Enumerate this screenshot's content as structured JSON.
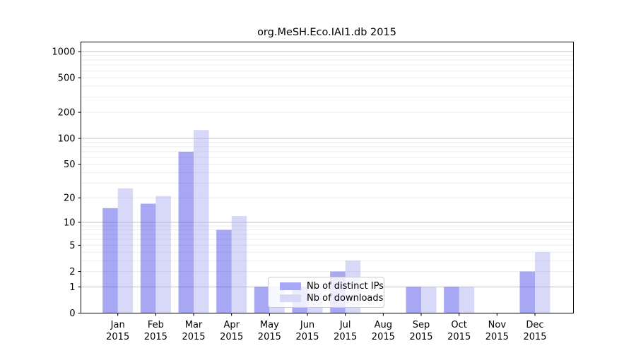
{
  "figure": {
    "background": "#ffffff"
  },
  "chart_data": {
    "type": "bar",
    "title": "org.MeSH.Eco.IAI1.db 2015",
    "categories": [
      "Jan",
      "Feb",
      "Mar",
      "Apr",
      "May",
      "Jun",
      "Jul",
      "Aug",
      "Sep",
      "Oct",
      "Nov",
      "Dec"
    ],
    "x_tick_year": "2015",
    "series": [
      {
        "name": "Nb of distinct IPs",
        "color": "#a7a7f4",
        "values": [
          15,
          17,
          70,
          8,
          1,
          1,
          2,
          0,
          1,
          1,
          0,
          2
        ]
      },
      {
        "name": "Nb of downloads",
        "color": "#d8d8f8",
        "values": [
          26,
          21,
          125,
          12,
          1,
          1,
          3,
          0,
          1,
          1,
          0,
          4
        ]
      }
    ],
    "yscale": "log1p",
    "ylim": [
      0,
      1300
    ],
    "yticks": [
      0,
      1,
      2,
      5,
      10,
      20,
      50,
      100,
      200,
      500,
      1000
    ],
    "grid": {
      "major": [
        1,
        10,
        100,
        1000
      ],
      "minor": [
        2,
        3,
        4,
        5,
        6,
        7,
        8,
        9,
        20,
        30,
        40,
        50,
        60,
        70,
        80,
        90,
        200,
        300,
        400,
        500,
        600,
        700,
        800,
        900
      ],
      "major_color": "#c0c0c0",
      "minor_color": "#ececec"
    },
    "legend_position": "lower-center",
    "axis_color": "#000000"
  }
}
